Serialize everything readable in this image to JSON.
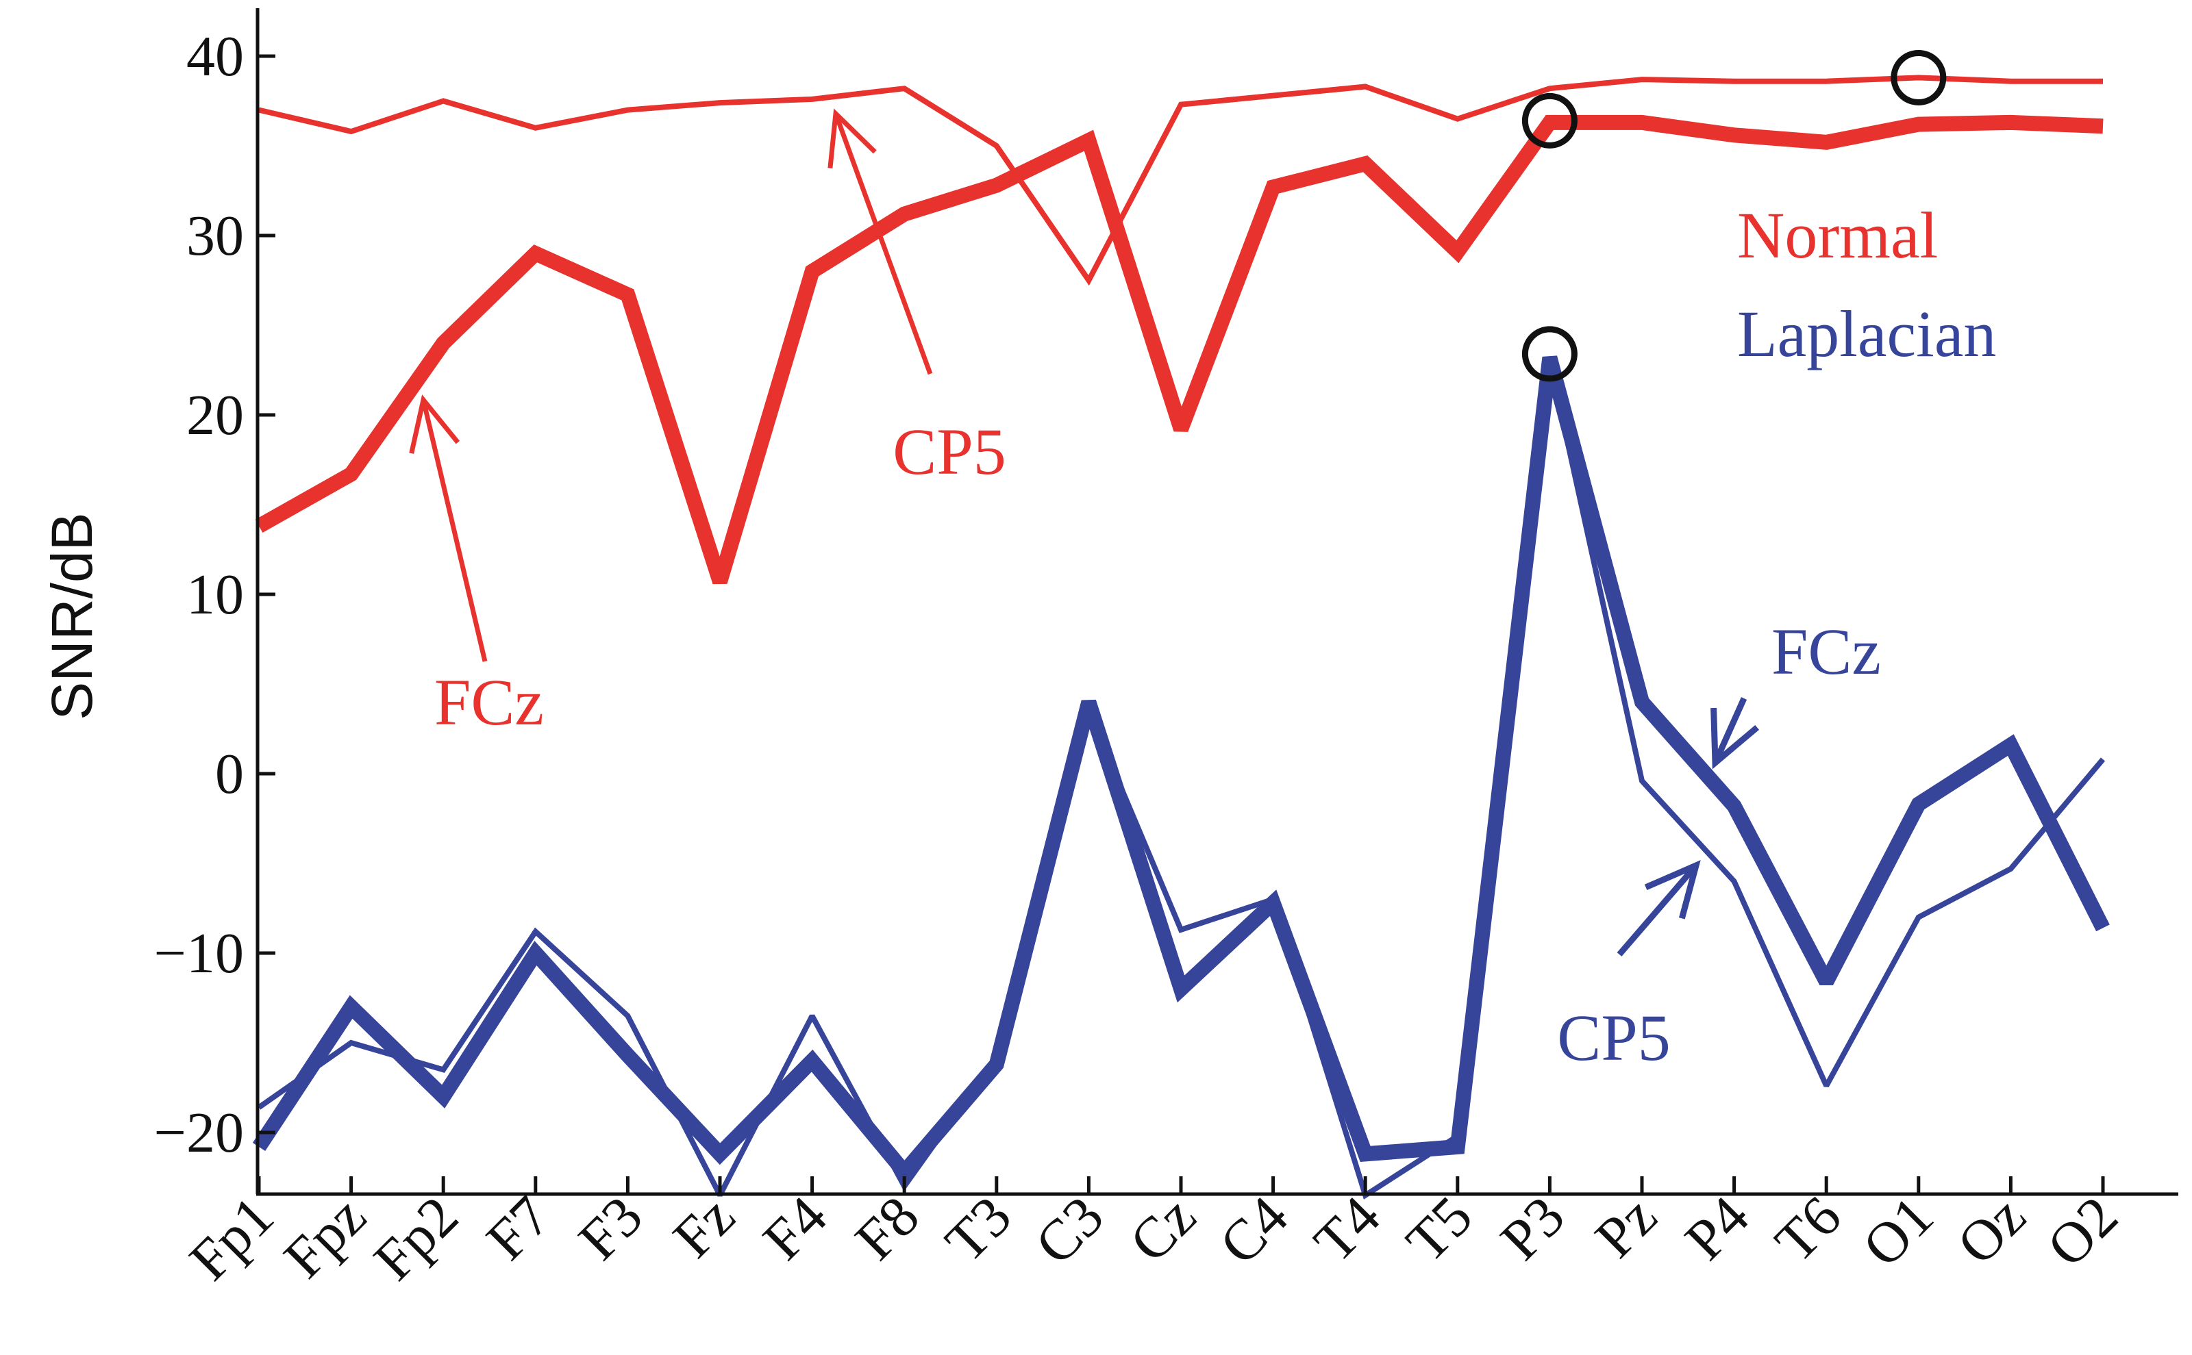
{
  "chart_data": {
    "type": "line",
    "title": "",
    "xlabel": "",
    "ylabel": "SNR/dB",
    "ylim": [
      -24,
      42
    ],
    "yticks": [
      -20,
      -10,
      0,
      10,
      20,
      30,
      40
    ],
    "ytick_labels": [
      "−20",
      "−10",
      "0",
      "10",
      "20",
      "30",
      "40"
    ],
    "categories": [
      "Fp1",
      "Fpz",
      "Fp2",
      "F7",
      "F3",
      "Fz",
      "F4",
      "F8",
      "T3",
      "C3",
      "Cz",
      "C4",
      "T4",
      "T5",
      "P3",
      "Pz",
      "P4",
      "T6",
      "O1",
      "Oz",
      "O2"
    ],
    "grid": false,
    "legend": {
      "position": "right",
      "entries": [
        {
          "label": "Normal",
          "color": "#e8322e"
        },
        {
          "label": "Laplacian",
          "color": "#36449a"
        }
      ]
    },
    "colors": {
      "normal": "#e8322e",
      "laplacian": "#36449a",
      "marker": "#111111"
    },
    "series": [
      {
        "method": "Normal",
        "electrode": "FCz",
        "style": "thick",
        "values": [
          13.8,
          16.7,
          24.0,
          29.0,
          26.7,
          10.7,
          28.0,
          31.2,
          32.8,
          35.3,
          19.2,
          32.7,
          34.0,
          29.1,
          36.3,
          36.3,
          35.6,
          35.2,
          36.2,
          36.3,
          36.1
        ]
      },
      {
        "method": "Normal",
        "electrode": "CP5",
        "style": "thin",
        "values": [
          37.0,
          35.8,
          37.5,
          36.0,
          37.0,
          37.4,
          37.6,
          38.2,
          35.0,
          27.5,
          37.3,
          37.8,
          38.3,
          36.5,
          38.2,
          38.7,
          38.6,
          38.6,
          38.8,
          38.6,
          38.6
        ]
      },
      {
        "method": "Laplacian",
        "electrode": "FCz",
        "style": "thick",
        "values": [
          -20.8,
          -13.0,
          -18.0,
          -10.0,
          -15.7,
          -21.2,
          -16.0,
          -22.2,
          -16.2,
          4.0,
          -12.0,
          -7.2,
          -21.2,
          -20.8,
          23.2,
          4.0,
          -1.8,
          -11.6,
          -1.7,
          1.6,
          -8.6
        ]
      },
      {
        "method": "Laplacian",
        "electrode": "CP5",
        "style": "thin",
        "values": [
          -18.6,
          -15.0,
          -16.5,
          -8.8,
          -13.5,
          -23.5,
          -13.5,
          -23.0,
          -15.8,
          3.5,
          -8.7,
          -7.0,
          -23.5,
          -20.2,
          23.0,
          -0.4,
          -6.0,
          -17.4,
          -8.0,
          -5.3,
          0.8
        ]
      }
    ],
    "markers": [
      {
        "series": "Normal FCz",
        "category": "P3",
        "value": 36.4
      },
      {
        "series": "Normal CP5",
        "category": "O1",
        "value": 38.8
      },
      {
        "series": "Laplacian FCz",
        "category": "P3",
        "value": 23.4
      }
    ],
    "annotations": [
      {
        "text": "CP5",
        "color": "#e8322e",
        "points_to": "Normal CP5",
        "category": "F4",
        "value": 37.6
      },
      {
        "text": "FCz",
        "color": "#e8322e",
        "points_to": "Normal FCz",
        "category": "Fp2",
        "value": 21.5
      },
      {
        "text": "FCz",
        "color": "#36449a",
        "points_to": "Laplacian FCz",
        "category": "Pz",
        "value": 0.3
      },
      {
        "text": "CP5",
        "color": "#36449a",
        "points_to": "Laplacian CP5",
        "category": "P4",
        "value": -5.0
      }
    ]
  }
}
